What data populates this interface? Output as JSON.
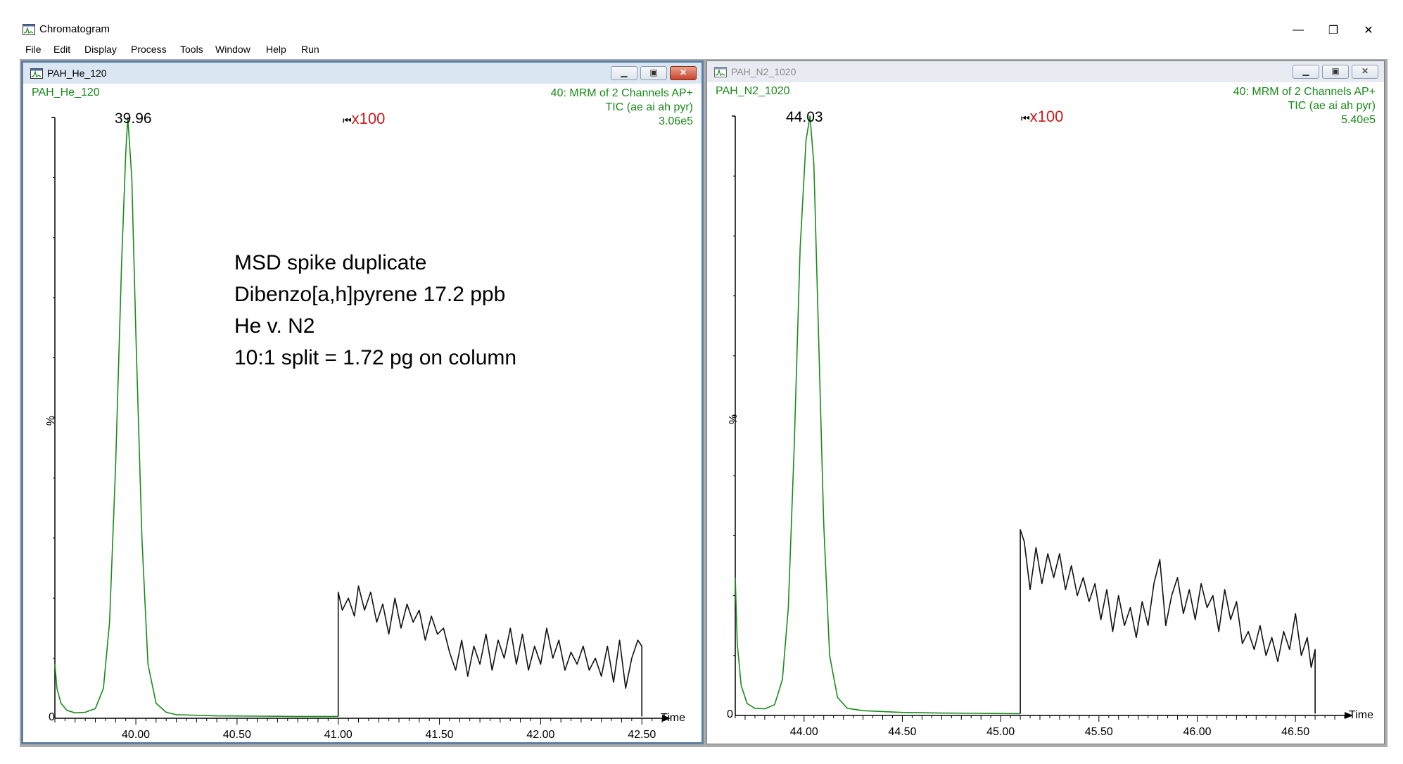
{
  "app": {
    "title": "Chromatogram",
    "icon": "chromatogram-app-icon",
    "window_controls": [
      "—",
      "❐",
      "✕"
    ]
  },
  "menu": {
    "items": [
      "File",
      "Edit",
      "Display",
      "Process",
      "Tools",
      "Window",
      "Help",
      "Run"
    ]
  },
  "windows": [
    {
      "title": "PAH_He_120",
      "sample_label": "PAH_He_120",
      "channel_line1": "40: MRM of 2 Channels AP+",
      "channel_line2": "TIC (ae ai ah pyr)",
      "intensity": "3.06e5",
      "peak_label": "39.96",
      "zoom": "x100",
      "y_label": "%",
      "y_zero": "0",
      "x_label": "Time",
      "x_ticks": [
        "40.00",
        "40.50",
        "41.00",
        "41.50",
        "42.00",
        "42.50"
      ],
      "annotation": [
        "MSD spike duplicate",
        "Dibenzo[a,h]pyrene 17.2 ppb",
        "He v. N2",
        "10:1 split = 1.72 pg on column"
      ]
    },
    {
      "title": "PAH_N2_1020",
      "sample_label": "PAH_N2_1020",
      "channel_line1": "40: MRM of 2 Channels AP+",
      "channel_line2": "TIC (ae ai ah pyr)",
      "intensity": "5.40e5",
      "peak_label": "44.03",
      "zoom": "x100",
      "y_label": "%",
      "y_zero": "0",
      "x_label": "Time",
      "x_ticks": [
        "44.00",
        "44.50",
        "45.00",
        "45.50",
        "46.00",
        "46.50"
      ]
    }
  ],
  "colors": {
    "trace_green": "#1a8a1a",
    "trace_black": "#111111",
    "zoom_red": "#cc1a1a",
    "active_border": "#5d7fa6"
  },
  "chart_data": [
    {
      "type": "line",
      "title": "PAH_He_120",
      "xlabel": "Time",
      "ylabel": "%",
      "xlim": [
        39.6,
        42.6
      ],
      "ylim": [
        0,
        100
      ],
      "peak": 39.96,
      "zoom_start": 41.0,
      "zoom_factor": 100,
      "series": [
        {
          "color": "#1a8a1a",
          "x": [
            39.6,
            39.61,
            39.63,
            39.66,
            39.7,
            39.75,
            39.8,
            39.84,
            39.87,
            39.9,
            39.93,
            39.95,
            39.96,
            39.98,
            40.0,
            40.03,
            40.06,
            40.1,
            40.15,
            40.2,
            40.4,
            40.6,
            40.8,
            41.0
          ],
          "y": [
            9,
            5,
            2.5,
            1.3,
            0.9,
            1.0,
            1.6,
            5,
            16,
            42,
            76,
            94,
            100,
            90,
            64,
            30,
            9,
            2.5,
            1.0,
            0.6,
            0.4,
            0.35,
            0.3,
            0.3
          ]
        },
        {
          "color": "#111111",
          "x": [
            41.0,
            41.0,
            41.02,
            41.05,
            41.08,
            41.1,
            41.13,
            41.16,
            41.19,
            41.22,
            41.25,
            41.28,
            41.31,
            41.34,
            41.37,
            41.4,
            41.43,
            41.46,
            41.49,
            41.52,
            41.55,
            41.58,
            41.61,
            41.64,
            41.67,
            41.7,
            41.73,
            41.76,
            41.79,
            41.82,
            41.85,
            41.88,
            41.91,
            41.94,
            41.97,
            42.0,
            42.03,
            42.06,
            42.09,
            42.12,
            42.15,
            42.18,
            42.21,
            42.24,
            42.27,
            42.3,
            42.33,
            42.36,
            42.39,
            42.42,
            42.45,
            42.48,
            42.5,
            42.5
          ],
          "y": [
            0.3,
            21,
            18,
            20,
            17,
            22,
            18,
            21,
            16,
            19,
            14,
            20,
            15,
            19,
            16,
            18,
            13,
            17,
            14,
            15,
            11,
            8,
            13,
            7,
            12,
            9,
            14,
            8,
            13,
            10,
            15,
            9,
            14,
            8,
            12,
            9,
            15,
            10,
            13,
            8,
            11,
            9,
            12,
            8,
            10,
            7,
            12,
            6,
            13,
            5,
            10,
            13,
            12,
            0.3
          ]
        }
      ]
    },
    {
      "type": "line",
      "title": "PAH_N2_1020",
      "xlabel": "Time",
      "ylabel": "%",
      "xlim": [
        43.65,
        46.75
      ],
      "ylim": [
        0,
        100
      ],
      "peak": 44.03,
      "zoom_start": 45.1,
      "zoom_factor": 100,
      "series": [
        {
          "color": "#1a8a1a",
          "x": [
            43.65,
            43.66,
            43.68,
            43.71,
            43.75,
            43.8,
            43.85,
            43.89,
            43.92,
            43.95,
            43.98,
            44.01,
            44.03,
            44.05,
            44.07,
            44.1,
            44.13,
            44.17,
            44.22,
            44.3,
            44.5,
            44.7,
            44.9,
            45.1
          ],
          "y": [
            23,
            12,
            5,
            2,
            1.2,
            1.1,
            1.8,
            6,
            18,
            45,
            78,
            96,
            100,
            92,
            68,
            32,
            10,
            3,
            1.2,
            0.8,
            0.5,
            0.4,
            0.35,
            0.3
          ]
        },
        {
          "color": "#111111",
          "x": [
            45.1,
            45.1,
            45.12,
            45.15,
            45.18,
            45.21,
            45.24,
            45.27,
            45.3,
            45.33,
            45.36,
            45.39,
            45.42,
            45.45,
            45.48,
            45.51,
            45.54,
            45.57,
            45.6,
            45.63,
            45.66,
            45.69,
            45.72,
            45.75,
            45.78,
            45.81,
            45.84,
            45.87,
            45.9,
            45.93,
            45.96,
            45.99,
            46.02,
            46.05,
            46.08,
            46.11,
            46.14,
            46.17,
            46.2,
            46.23,
            46.26,
            46.29,
            46.32,
            46.35,
            46.38,
            46.41,
            46.44,
            46.47,
            46.5,
            46.53,
            46.56,
            46.58,
            46.6,
            46.6
          ],
          "y": [
            0.3,
            31,
            29,
            21,
            28,
            22,
            27,
            23,
            27,
            21,
            25,
            20,
            23,
            19,
            22,
            16,
            21,
            14,
            20,
            15,
            18,
            13,
            19,
            15,
            22,
            26,
            15,
            20,
            23,
            17,
            21,
            16,
            22,
            18,
            20,
            14,
            21,
            16,
            19,
            12,
            14,
            11,
            15,
            10,
            13,
            9,
            14,
            11,
            17,
            10,
            13,
            8,
            11,
            0.3
          ]
        }
      ]
    }
  ]
}
